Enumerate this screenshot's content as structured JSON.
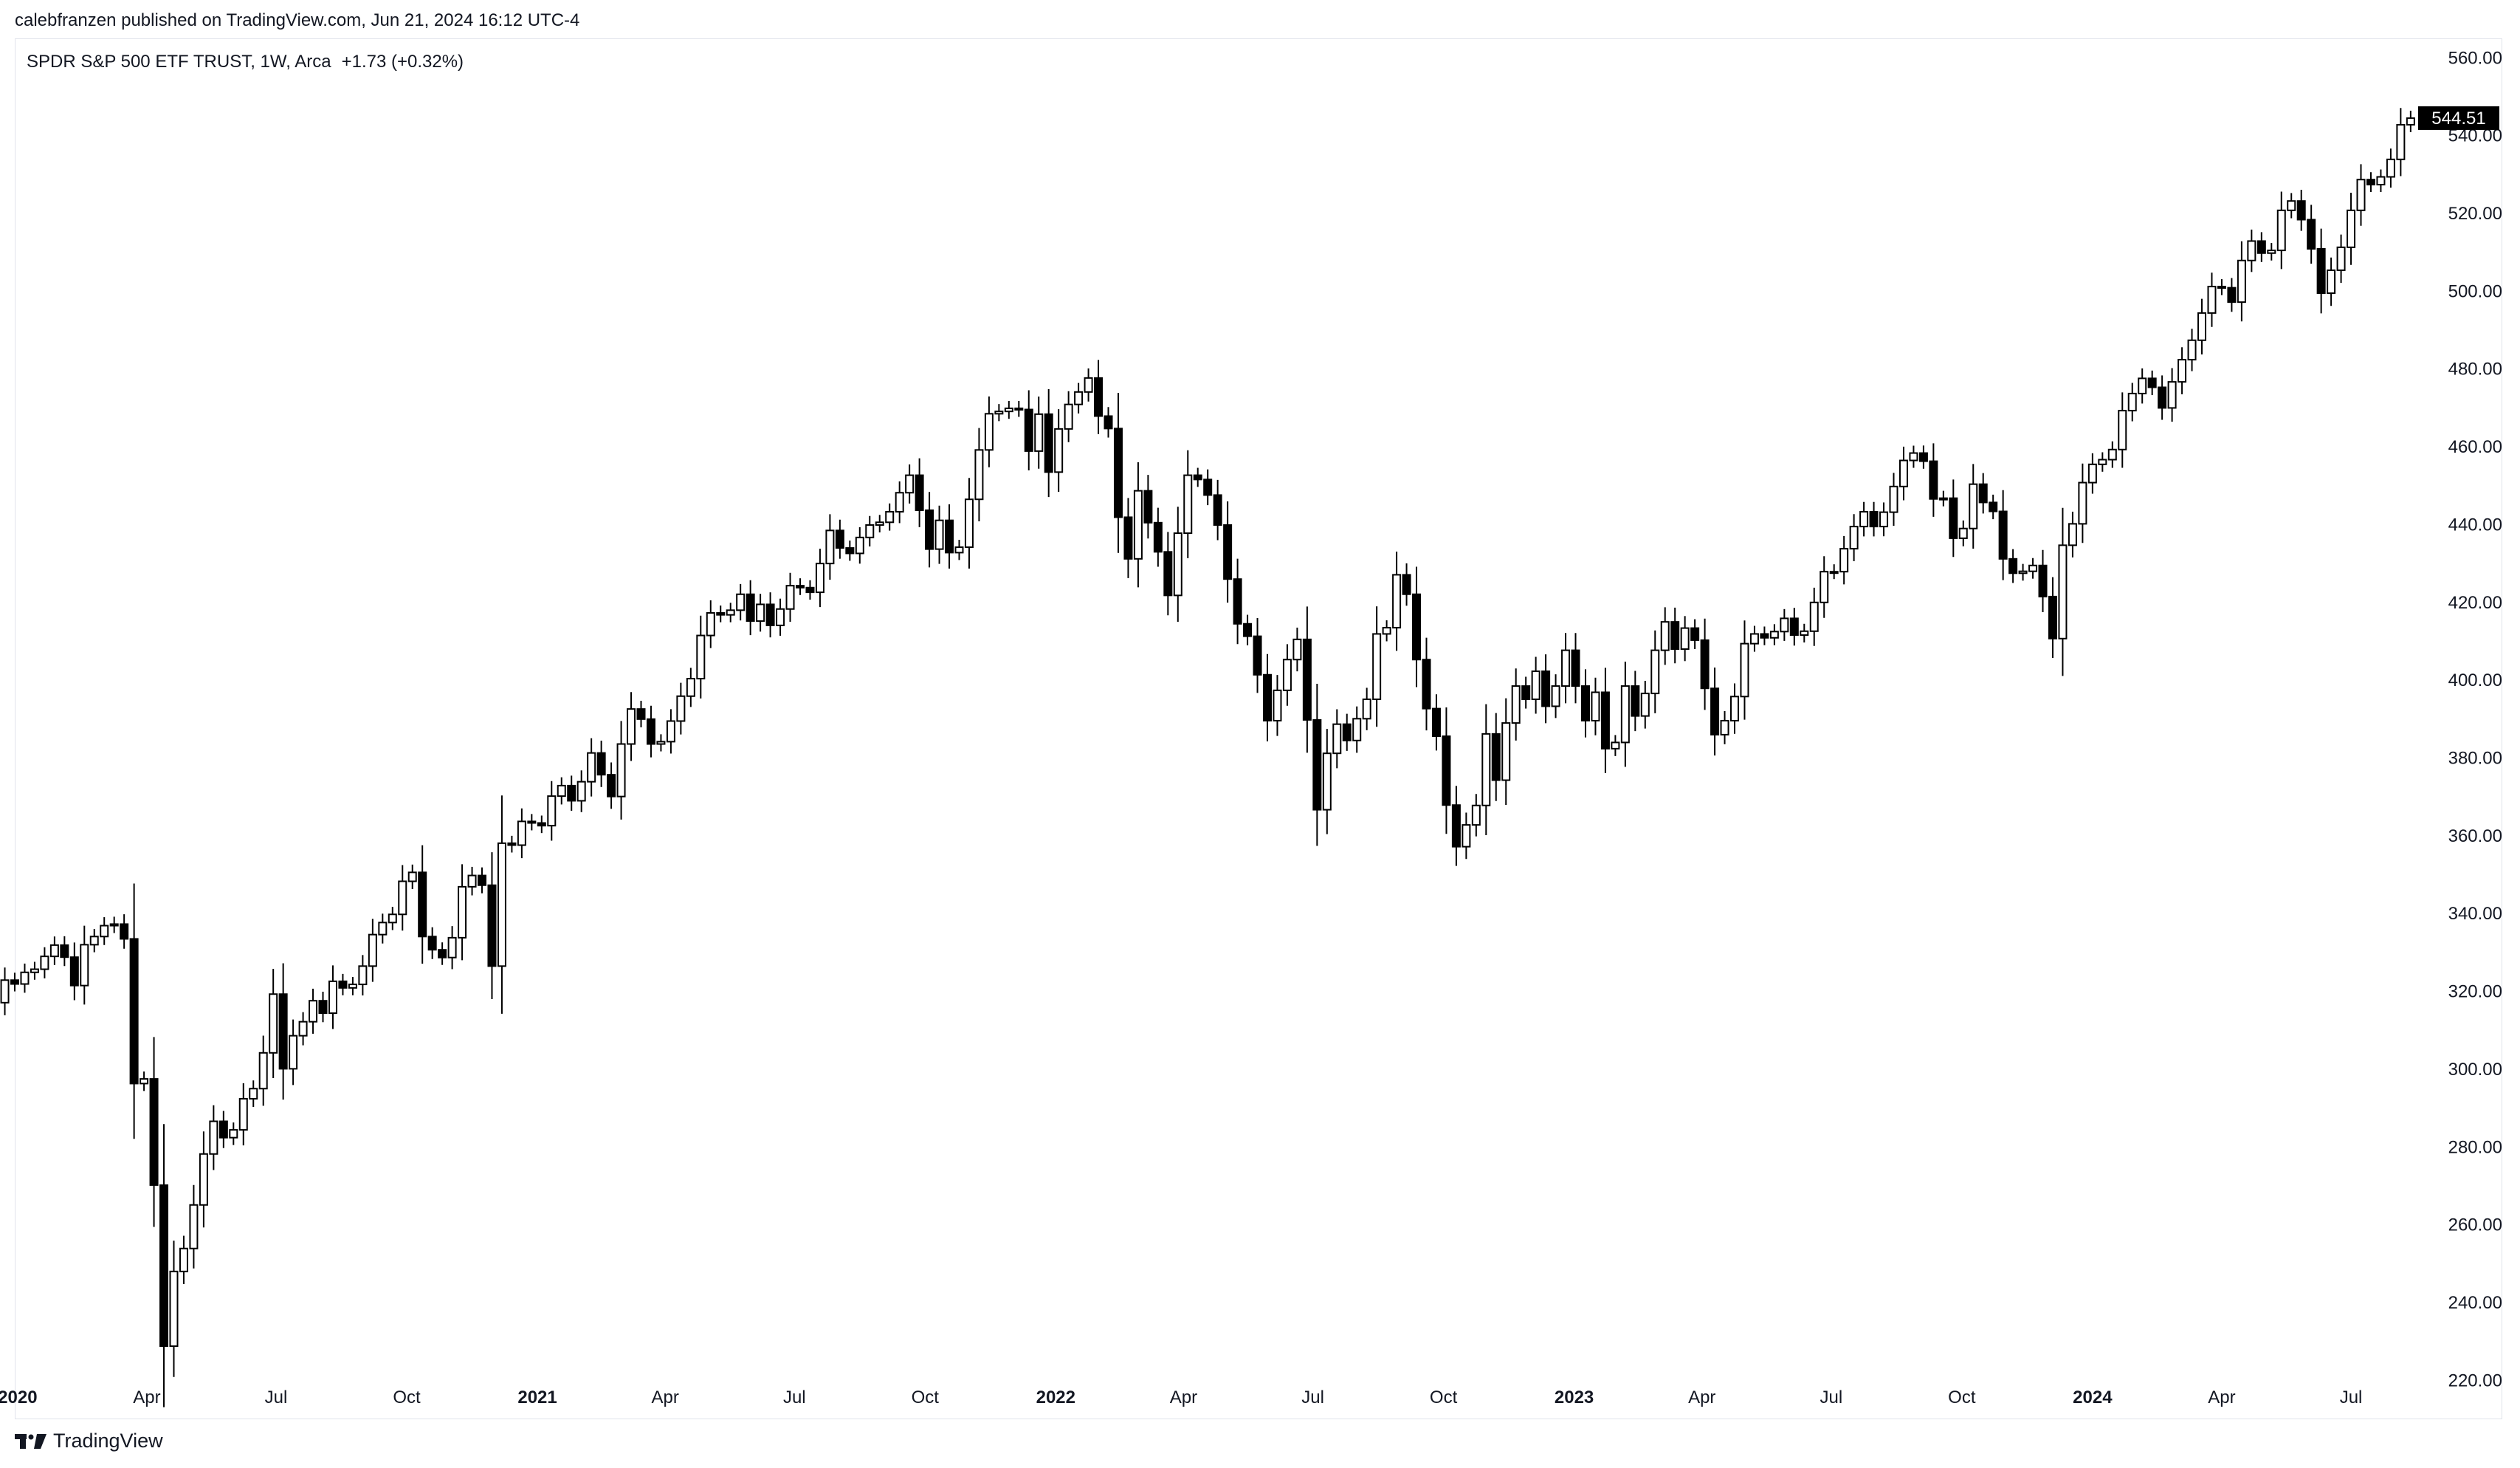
{
  "header": {
    "publish_line": "calebfranzen published on TradingView.com, Jun 21, 2024 16:12 UTC-4"
  },
  "legend": {
    "symbol": "SPDR S&P 500 ETF TRUST, 1W, Arca",
    "change": "+1.73 (+0.32%)"
  },
  "footer": {
    "brand": "TradingView",
    "logo_icon": "tradingview-logo-icon"
  },
  "colors": {
    "up_fill": "#ffffff",
    "down_fill": "#000000",
    "candle_outline": "#000000",
    "price_badge_bg": "#000000",
    "price_badge_text": "#ffffff",
    "axis_text": "#131722",
    "frame": "#e0e3eb"
  },
  "chart_data": {
    "type": "candlestick",
    "title": "SPDR S&P 500 ETF TRUST, 1W, Arca",
    "interval": "1W",
    "x_axis": "dates",
    "x_range": [
      "2019-12-30",
      "2024-08-10"
    ],
    "ylim": [
      210,
      565
    ],
    "y_ticks": [
      220,
      240,
      260,
      280,
      300,
      320,
      340,
      360,
      380,
      400,
      420,
      440,
      460,
      480,
      500,
      520,
      540,
      560
    ],
    "y_tick_labels": [
      "220.00",
      "240.00",
      "260.00",
      "280.00",
      "300.00",
      "320.00",
      "340.00",
      "360.00",
      "380.00",
      "400.00",
      "420.00",
      "440.00",
      "460.00",
      "480.00",
      "500.00",
      "520.00",
      "540.00",
      "560.00"
    ],
    "x_ticks": [
      {
        "label": "2020",
        "date": "2020-01-01",
        "bold": true
      },
      {
        "label": "Apr",
        "date": "2020-04-01",
        "bold": false
      },
      {
        "label": "Jul",
        "date": "2020-07-01",
        "bold": false
      },
      {
        "label": "Oct",
        "date": "2020-10-01",
        "bold": false
      },
      {
        "label": "2021",
        "date": "2021-01-01",
        "bold": true
      },
      {
        "label": "Apr",
        "date": "2021-04-01",
        "bold": false
      },
      {
        "label": "Jul",
        "date": "2021-07-01",
        "bold": false
      },
      {
        "label": "Oct",
        "date": "2021-10-01",
        "bold": false
      },
      {
        "label": "2022",
        "date": "2022-01-01",
        "bold": true
      },
      {
        "label": "Apr",
        "date": "2022-04-01",
        "bold": false
      },
      {
        "label": "Jul",
        "date": "2022-07-01",
        "bold": false
      },
      {
        "label": "Oct",
        "date": "2022-10-01",
        "bold": false
      },
      {
        "label": "2023",
        "date": "2023-01-01",
        "bold": true
      },
      {
        "label": "Apr",
        "date": "2023-04-01",
        "bold": false
      },
      {
        "label": "Jul",
        "date": "2023-07-01",
        "bold": false
      },
      {
        "label": "Oct",
        "date": "2023-10-01",
        "bold": false
      },
      {
        "label": "2024",
        "date": "2024-01-01",
        "bold": true
      },
      {
        "label": "Apr",
        "date": "2024-04-01",
        "bold": false
      },
      {
        "label": "Jul",
        "date": "2024-07-01",
        "bold": false
      }
    ],
    "last_price": 544.51,
    "last_price_label": "544.51",
    "start_date": "2019-12-02",
    "closes": [
      314.3,
      316.6,
      317.1,
      322.9,
      321.9,
      324.9,
      325.7,
      329.0,
      331.9,
      328.8,
      321.5,
      332.0,
      334.1,
      336.9,
      337.3,
      333.5,
      296.3,
      297.5,
      270.2,
      228.8,
      248.0,
      253.9,
      265.1,
      278.2,
      286.6,
      282.4,
      284.4,
      292.4,
      295.0,
      304.2,
      319.3,
      300.1,
      308.6,
      312.2,
      317.6,
      314.4,
      322.6,
      320.9,
      321.8,
      326.5,
      334.6,
      337.7,
      339.8,
      348.3,
      350.6,
      334.1,
      330.7,
      328.7,
      333.8,
      346.9,
      349.8,
      347.3,
      326.5,
      358.1,
      357.6,
      363.7,
      363.3,
      362.6,
      370.2,
      372.9,
      369.0,
      373.9,
      381.3,
      375.7,
      370.1,
      383.6,
      392.6,
      390.0,
      383.6,
      384.2,
      389.5,
      395.9,
      400.4,
      411.5,
      417.3,
      416.8,
      418.0,
      422.1,
      415.2,
      419.5,
      414.1,
      418.3,
      424.3,
      423.8,
      422.6,
      430.0,
      438.5,
      434.0,
      432.6,
      436.7,
      439.9,
      440.6,
      443.3,
      448.2,
      452.7,
      443.7,
      433.7,
      441.1,
      432.8,
      434.2,
      446.5,
      459.2,
      468.5,
      469.1,
      469.9,
      469.6,
      458.9,
      468.4,
      453.5,
      464.6,
      470.9,
      474.1,
      477.7,
      467.9,
      464.7,
      441.9,
      431.2,
      448.7,
      440.5,
      433.0,
      421.8,
      437.8,
      452.7,
      451.6,
      447.6,
      439.9,
      426.0,
      414.5,
      411.3,
      401.4,
      389.6,
      397.4,
      405.3,
      410.5,
      389.8,
      366.7,
      381.2,
      388.7,
      384.5,
      390.1,
      395.1,
      411.9,
      413.5,
      427.1,
      422.1,
      405.3,
      392.7,
      385.6,
      367.9,
      357.2,
      362.8,
      367.8,
      386.2,
      374.3,
      389.0,
      398.5,
      395.1,
      402.3,
      393.3,
      398.5,
      407.7,
      398.5,
      389.6,
      396.9,
      382.4,
      384.0,
      398.5,
      390.8,
      396.6,
      407.7,
      415.0,
      408.0,
      413.4,
      410.3,
      397.9,
      386.0,
      389.6,
      395.8,
      409.4,
      411.9,
      410.9,
      412.5,
      415.9,
      411.6,
      412.6,
      420.0,
      427.9,
      427.9,
      433.8,
      439.5,
      443.3,
      439.5,
      443.2,
      449.8,
      456.5,
      458.4,
      456.3,
      446.6,
      446.8,
      436.5,
      439.0,
      450.4,
      445.7,
      443.4,
      431.2,
      427.5,
      428.0,
      429.5,
      421.5,
      410.7,
      434.7,
      440.2,
      450.8,
      455.5,
      456.7,
      459.3,
      469.3,
      473.7,
      477.6,
      475.3,
      470.0,
      476.7,
      482.4,
      487.4,
      494.4,
      501.2,
      500.9,
      497.2,
      507.9,
      512.9,
      509.8,
      510.5,
      520.8,
      523.2,
      518.4,
      510.9,
      499.5,
      505.4,
      511.3,
      520.8,
      528.7,
      527.4,
      529.4,
      533.9,
      542.8,
      544.51
    ]
  }
}
